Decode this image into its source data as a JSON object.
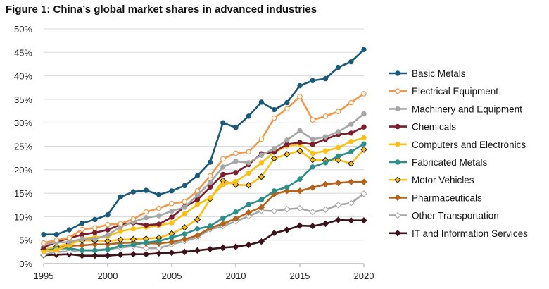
{
  "title": "Figure 1: China’s global market shares in advanced industries",
  "chart_data": {
    "type": "line",
    "title": "Figure 1: China’s global market shares in advanced industries",
    "xlabel": "",
    "ylabel": "",
    "x": [
      1995,
      1996,
      1997,
      1998,
      1999,
      2000,
      2001,
      2002,
      2003,
      2004,
      2005,
      2006,
      2007,
      2008,
      2009,
      2010,
      2011,
      2012,
      2013,
      2014,
      2015,
      2016,
      2017,
      2018,
      2019,
      2020
    ],
    "xlim": [
      1995,
      2020
    ],
    "ylim": [
      0,
      50
    ],
    "x_ticks": [
      1995,
      2000,
      2005,
      2010,
      2015,
      2020
    ],
    "y_ticks": [
      0,
      5,
      10,
      15,
      20,
      25,
      30,
      35,
      40,
      45,
      50
    ],
    "y_tick_labels": [
      "0%",
      "5%",
      "10%",
      "15%",
      "20%",
      "25%",
      "30%",
      "35%",
      "40%",
      "45%",
      "50%"
    ],
    "grid": "horizontal",
    "legend": "right",
    "series": [
      {
        "name": "Basic Metals",
        "color": "#1b5a7a",
        "marker": "circle-filled",
        "values": [
          6.2,
          6.2,
          7.2,
          8.6,
          9.4,
          10.4,
          14.2,
          15.3,
          15.6,
          14.7,
          15.5,
          16.6,
          18.7,
          21.6,
          30.0,
          29.0,
          31.4,
          34.4,
          32.8,
          34.3,
          37.9,
          39.0,
          39.4,
          41.8,
          43.0,
          45.6
        ]
      },
      {
        "name": "Electrical Equipment",
        "color": "#f0994b",
        "marker": "circle-open",
        "values": [
          4.4,
          5.0,
          5.5,
          7.3,
          7.6,
          8.3,
          8.5,
          9.5,
          11.0,
          11.8,
          12.8,
          13.2,
          15.5,
          18.7,
          22.3,
          23.5,
          23.8,
          26.5,
          31.0,
          33.0,
          35.6,
          30.6,
          31.4,
          32.4,
          34.3,
          36.2
        ]
      },
      {
        "name": "Machinery and Equipment",
        "color": "#a6a6a6",
        "marker": "circle-filled",
        "values": [
          4.2,
          4.5,
          4.6,
          5.3,
          5.2,
          6.1,
          7.8,
          8.9,
          9.8,
          10.2,
          11.2,
          12.0,
          14.6,
          17.3,
          20.6,
          21.8,
          21.5,
          23.1,
          24.5,
          26.3,
          28.3,
          26.5,
          27.0,
          28.1,
          29.7,
          31.9
        ]
      },
      {
        "name": "Chemicals",
        "color": "#7b1e2d",
        "marker": "circle-filled",
        "values": [
          3.5,
          4.6,
          5.4,
          6.2,
          6.6,
          7.2,
          8.3,
          8.7,
          8.2,
          8.4,
          9.9,
          12.1,
          13.6,
          16.3,
          19.0,
          19.4,
          21.1,
          23.4,
          23.8,
          25.4,
          25.8,
          25.4,
          26.5,
          27.5,
          27.8,
          29.1
        ]
      },
      {
        "name": "Computers and Electronics",
        "color": "#fbbf18",
        "marker": "circle-filled",
        "values": [
          2.6,
          2.9,
          3.9,
          5.4,
          5.6,
          5.8,
          6.9,
          7.4,
          7.8,
          8.1,
          8.7,
          10.6,
          12.6,
          14.0,
          16.8,
          17.5,
          19.3,
          21.5,
          23.7,
          25.1,
          25.4,
          23.5,
          24.0,
          24.7,
          26.0,
          26.8
        ]
      },
      {
        "name": "Fabricated Metals",
        "color": "#2d8f8c",
        "marker": "circle-filled",
        "values": [
          2.7,
          3.2,
          3.3,
          2.8,
          2.8,
          3.0,
          3.8,
          4.0,
          4.5,
          4.8,
          5.6,
          6.3,
          7.4,
          8.0,
          9.7,
          11.0,
          12.6,
          13.6,
          15.5,
          16.3,
          18.0,
          20.6,
          21.5,
          22.9,
          23.8,
          25.5
        ]
      },
      {
        "name": "Motor Vehicles",
        "color": "#fbbf18",
        "marker": "diamond-dark",
        "values": [
          3.0,
          3.6,
          4.3,
          4.9,
          4.9,
          4.8,
          5.1,
          5.2,
          5.3,
          5.5,
          6.4,
          7.7,
          9.4,
          13.8,
          17.7,
          16.8,
          16.7,
          18.5,
          22.4,
          23.3,
          24.0,
          22.1,
          22.0,
          22.1,
          21.3,
          24.3
        ]
      },
      {
        "name": "Pharmaceuticals",
        "color": "#b5621a",
        "marker": "diamond",
        "values": [
          3.1,
          3.3,
          3.8,
          3.9,
          4.1,
          4.1,
          4.4,
          4.5,
          4.3,
          4.3,
          4.6,
          5.2,
          6.0,
          7.6,
          8.5,
          9.6,
          10.9,
          12.0,
          14.8,
          15.5,
          15.5,
          16.2,
          16.9,
          17.2,
          17.4,
          17.4
        ]
      },
      {
        "name": "Other Transportation",
        "color": "#a6a6a6",
        "marker": "diamond-open",
        "values": [
          1.9,
          2.5,
          2.6,
          2.9,
          2.9,
          3.1,
          3.4,
          3.7,
          3.3,
          3.3,
          4.1,
          4.8,
          5.6,
          7.3,
          8.0,
          9.0,
          10.1,
          11.3,
          11.2,
          11.6,
          11.8,
          11.0,
          11.5,
          12.5,
          12.9,
          14.9
        ]
      },
      {
        "name": "IT and Information Services",
        "color": "#3c1319",
        "marker": "diamond",
        "values": [
          1.8,
          1.9,
          2.0,
          1.7,
          1.7,
          1.7,
          1.9,
          2.0,
          2.0,
          2.2,
          2.3,
          2.5,
          2.8,
          3.1,
          3.4,
          3.6,
          4.0,
          4.7,
          6.5,
          7.2,
          8.1,
          8.0,
          8.5,
          9.3,
          9.2,
          9.2
        ]
      }
    ]
  }
}
